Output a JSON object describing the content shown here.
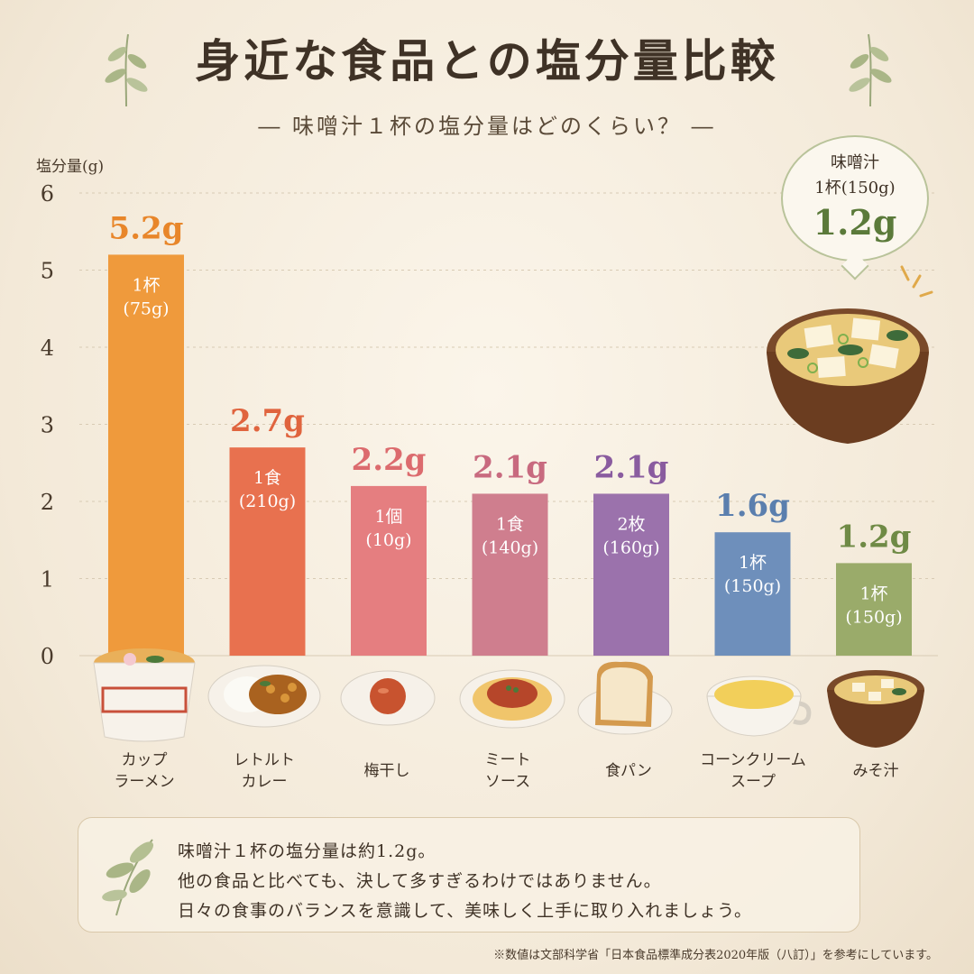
{
  "title": "身近な食品との塩分量比較",
  "subtitle": "― 味噌汁１杯の塩分量はどのくらい？ ―",
  "callout": {
    "line1": "味噌汁",
    "line2": "1杯(150g)",
    "value": "1.2g"
  },
  "note": {
    "line1": "味噌汁１杯の塩分量は約1.2g。",
    "line2": "他の食品と比べても、決して多すぎるわけではありません。",
    "line3": "日々の食事のバランスを意識して、美味しく上手に取り入れましょう。"
  },
  "footnote": "※数値は文部科学省「日本食品標準成分表2020年版（八訂）」を参考にしています。",
  "chart_data": {
    "type": "bar",
    "ylabel": "塩分量(g)",
    "ylim": [
      0,
      6
    ],
    "yticks": [
      "0",
      "1",
      "2",
      "3",
      "4",
      "5",
      "6"
    ],
    "categories": [
      {
        "line1": "カップ",
        "line2": "ラーメン"
      },
      {
        "line1": "レトルト",
        "line2": "カレー"
      },
      {
        "line1": "梅干し",
        "line2": ""
      },
      {
        "line1": "ミート",
        "line2": "ソース"
      },
      {
        "line1": "食パン",
        "line2": ""
      },
      {
        "line1": "コーンクリーム",
        "line2": "スープ"
      },
      {
        "line1": "みそ汁",
        "line2": ""
      }
    ],
    "values": [
      5.2,
      2.7,
      2.2,
      2.1,
      2.1,
      1.6,
      1.2
    ],
    "value_labels": [
      "5.2g",
      "2.7g",
      "2.2g",
      "2.1g",
      "2.1g",
      "1.6g",
      "1.2g"
    ],
    "portions": [
      {
        "line1": "1杯",
        "line2": "(75g)"
      },
      {
        "line1": "1食",
        "line2": "(210g)"
      },
      {
        "line1": "1個",
        "line2": "(10g)"
      },
      {
        "line1": "1食",
        "line2": "(140g)"
      },
      {
        "line1": "2枚",
        "line2": "(160g)"
      },
      {
        "line1": "1杯",
        "line2": "(150g)"
      },
      {
        "line1": "1杯",
        "line2": "(150g)"
      }
    ],
    "colors": [
      "#ef9a3c",
      "#e8714f",
      "#e57e80",
      "#cf7e8e",
      "#9b72ac",
      "#6e8fbb",
      "#9aab6a"
    ],
    "label_colors": [
      "#e8862a",
      "#e0643e",
      "#dc6b6e",
      "#c86a7f",
      "#8a5c9f",
      "#5b7fae",
      "#6f8a45"
    ]
  }
}
